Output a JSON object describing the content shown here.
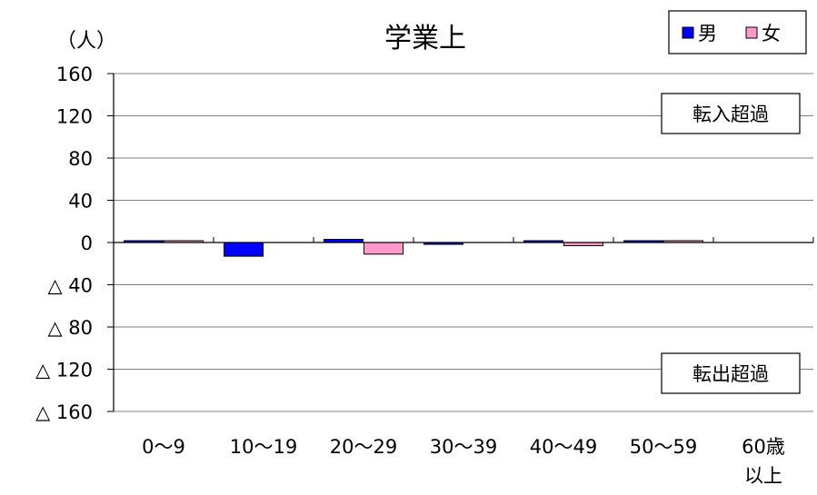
{
  "chart_data": {
    "type": "bar",
    "title": "学業上",
    "ylabel": "（人）",
    "categories": [
      "0～9",
      "10～19",
      "20～29",
      "30～39",
      "40～49",
      "50～59",
      "60歳\n以上"
    ],
    "series": [
      {
        "name": "男",
        "color": "#0000ff",
        "values": [
          1,
          -13,
          3,
          -1,
          1,
          1,
          0
        ]
      },
      {
        "name": "女",
        "color": "#ff99cc",
        "values": [
          1,
          0,
          -11,
          0,
          -3,
          1,
          0
        ]
      }
    ],
    "ylim": [
      -160,
      160
    ],
    "yticks": [
      160,
      120,
      80,
      40,
      0,
      -40,
      -80,
      -120,
      -160
    ],
    "ytick_labels": [
      "160",
      "120",
      "80",
      "40",
      "0",
      "△ 40",
      "△ 80",
      "△ 120",
      "△ 160"
    ],
    "grid": true,
    "legend_position": "top-right",
    "annotations": [
      "転入超過",
      "転出超過"
    ]
  }
}
